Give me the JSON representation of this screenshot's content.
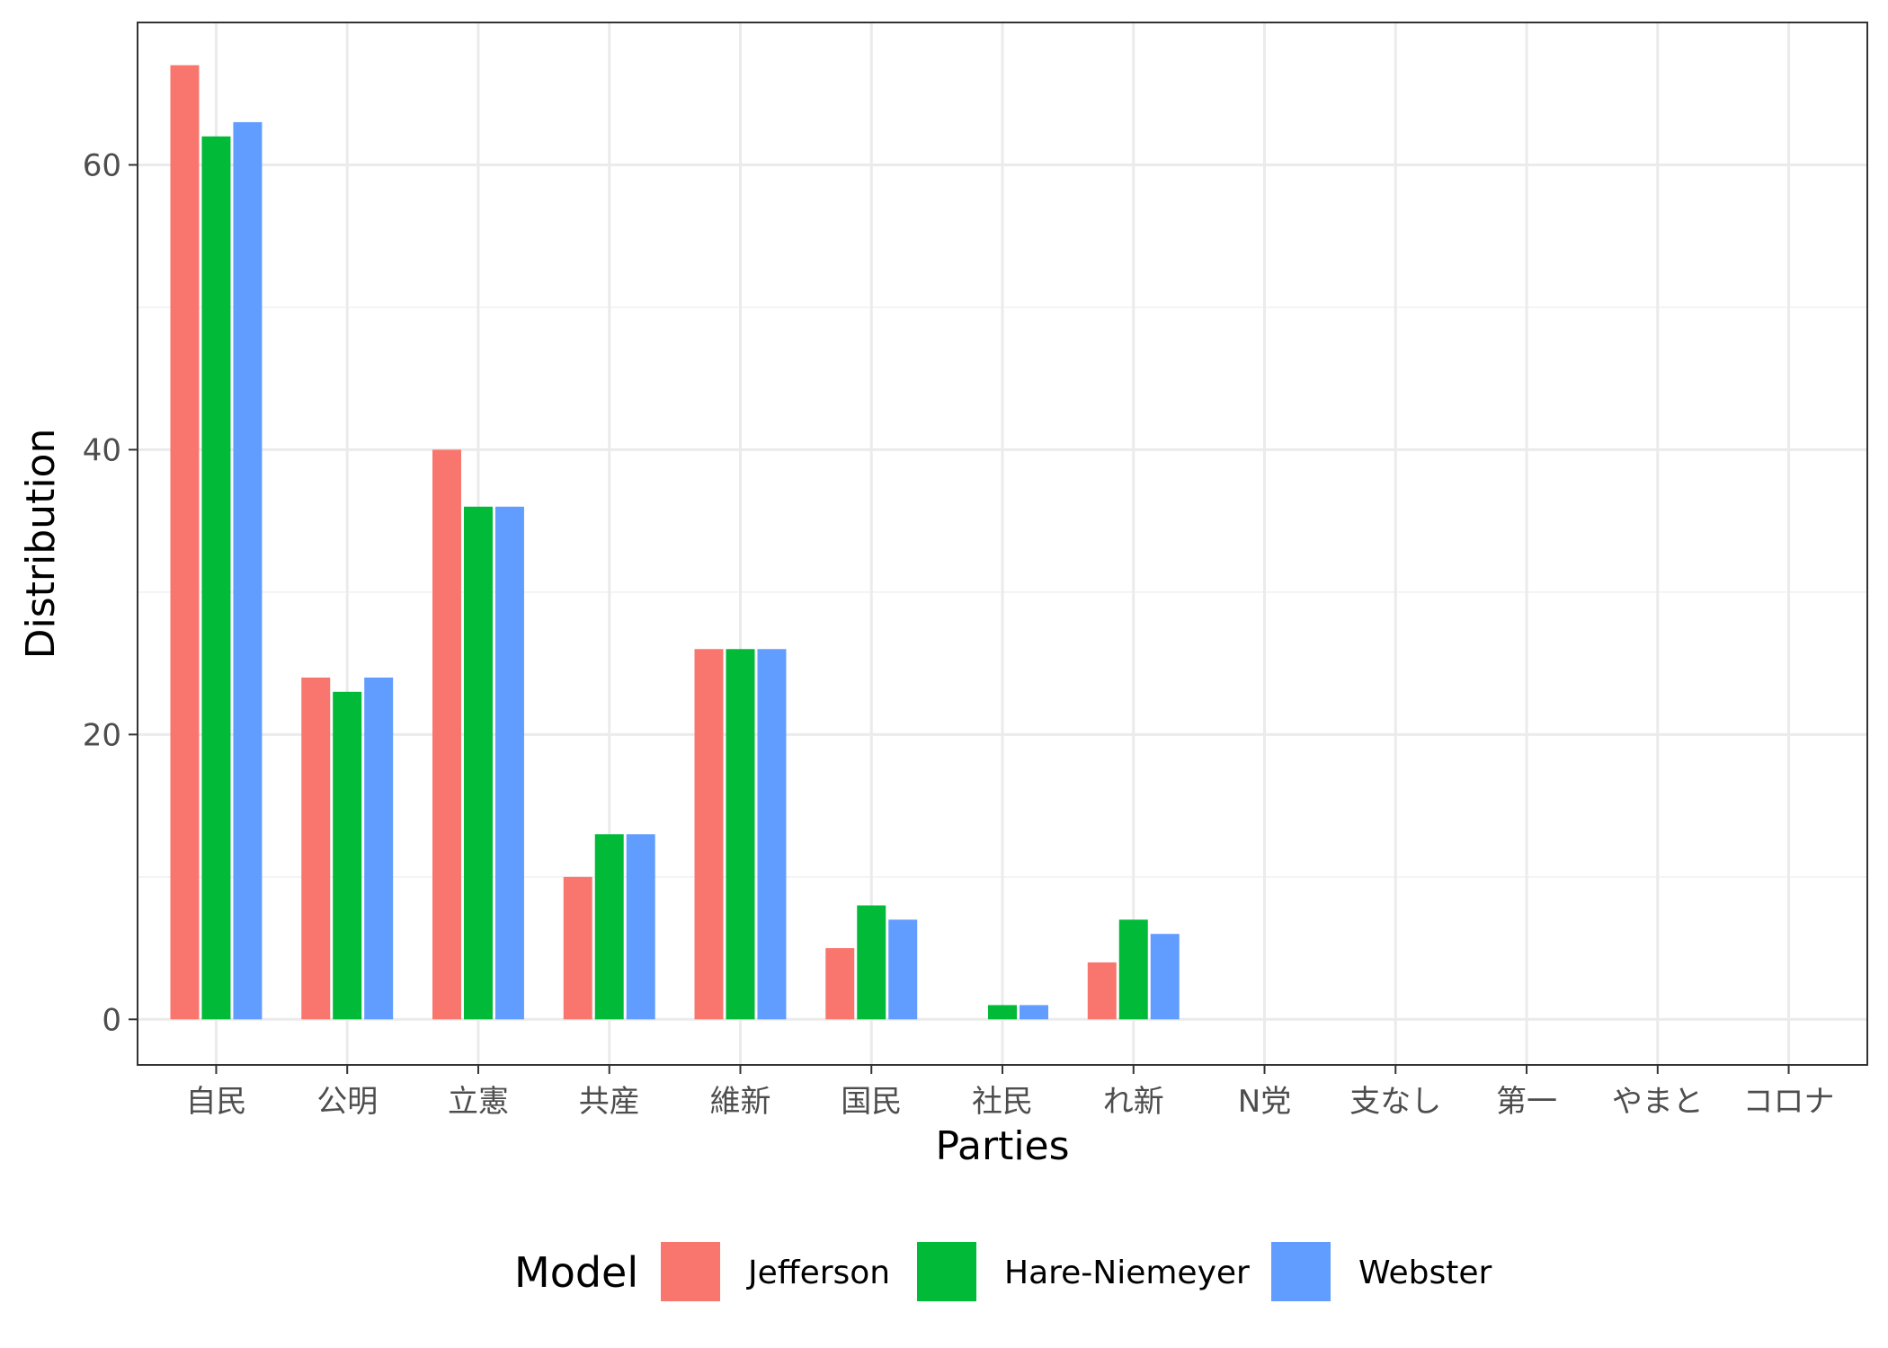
{
  "chart_data": {
    "type": "bar",
    "xlabel": "Parties",
    "ylabel": "Distribution",
    "ylim": [
      -3.2,
      70
    ],
    "yticks": [
      0,
      20,
      40,
      60
    ],
    "grid": true,
    "legend_position": "bottom",
    "legend_title": "Model",
    "categories": [
      "自民",
      "公明",
      "立憲",
      "共産",
      "維新",
      "国民",
      "社民",
      "れ新",
      "N党",
      "支なし",
      "第一",
      "やまと",
      "コロナ"
    ],
    "series": [
      {
        "name": "Jefferson",
        "color": "#F8766D",
        "values": [
          67,
          24,
          40,
          10,
          26,
          5,
          0,
          4,
          0,
          0,
          0,
          0,
          0
        ]
      },
      {
        "name": "Hare-Niemeyer",
        "color": "#00BA38",
        "values": [
          62,
          23,
          36,
          13,
          26,
          8,
          1,
          7,
          0,
          0,
          0,
          0,
          0
        ]
      },
      {
        "name": "Webster",
        "color": "#619CFF",
        "values": [
          63,
          24,
          36,
          13,
          26,
          7,
          1,
          6,
          0,
          0,
          0,
          0,
          0
        ]
      }
    ]
  }
}
